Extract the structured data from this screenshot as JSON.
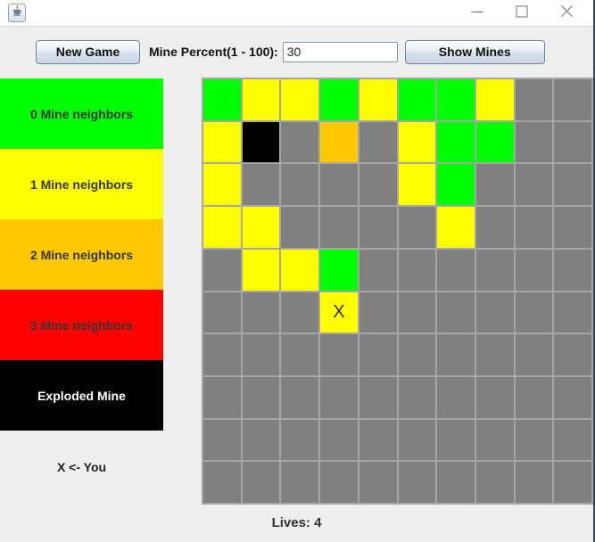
{
  "window": {
    "icons": {
      "app": "java-coffee-cup",
      "minimize": "minimize-line",
      "maximize": "maximize-square",
      "close": "close-x"
    }
  },
  "toolbar": {
    "new_game_label": "New Game",
    "mine_percent_label": "Mine Percent(1 - 100):",
    "mine_percent_value": "30",
    "show_mines_label": "Show Mines"
  },
  "legend": {
    "items": [
      {
        "label": "0 Mine neighbors",
        "color": "#00FF00",
        "text_color": "#363636"
      },
      {
        "label": "1 Mine neighbors",
        "color": "#FFFF00",
        "text_color": "#363636"
      },
      {
        "label": "2 Mine neighbors",
        "color": "#FFC800",
        "text_color": "#363636"
      },
      {
        "label": "3 Mine neighbors",
        "color": "#FF0000",
        "text_color": "#363636"
      },
      {
        "label": "Exploded Mine",
        "color": "#000000",
        "text_color": "#FFFFFF"
      }
    ],
    "player_note": "X <- You"
  },
  "board": {
    "rows": 10,
    "cols": 10,
    "player_marker": "X",
    "player_position": {
      "row": 5,
      "col": 3
    },
    "colors": {
      "g": "#00FF00",
      "y": "#FFFF00",
      "o": "#FFC800",
      "r": "#FF0000",
      "b": "#000000",
      "u": "#808080"
    },
    "cells": [
      [
        "g",
        "y",
        "y",
        "g",
        "y",
        "g",
        "g",
        "y",
        "u",
        "u"
      ],
      [
        "y",
        "b",
        "u",
        "o",
        "u",
        "y",
        "g",
        "g",
        "u",
        "u"
      ],
      [
        "y",
        "u",
        "u",
        "u",
        "u",
        "y",
        "g",
        "u",
        "u",
        "u"
      ],
      [
        "y",
        "y",
        "u",
        "u",
        "u",
        "u",
        "y",
        "u",
        "u",
        "u"
      ],
      [
        "u",
        "y",
        "y",
        "g",
        "u",
        "u",
        "u",
        "u",
        "u",
        "u"
      ],
      [
        "u",
        "u",
        "u",
        "y",
        "u",
        "u",
        "u",
        "u",
        "u",
        "u"
      ],
      [
        "u",
        "u",
        "u",
        "u",
        "u",
        "u",
        "u",
        "u",
        "u",
        "u"
      ],
      [
        "u",
        "u",
        "u",
        "u",
        "u",
        "u",
        "u",
        "u",
        "u",
        "u"
      ],
      [
        "u",
        "u",
        "u",
        "u",
        "u",
        "u",
        "u",
        "u",
        "u",
        "u"
      ],
      [
        "u",
        "u",
        "u",
        "u",
        "u",
        "u",
        "u",
        "u",
        "u",
        "u"
      ]
    ]
  },
  "status": {
    "lives_label": "Lives: 4"
  }
}
